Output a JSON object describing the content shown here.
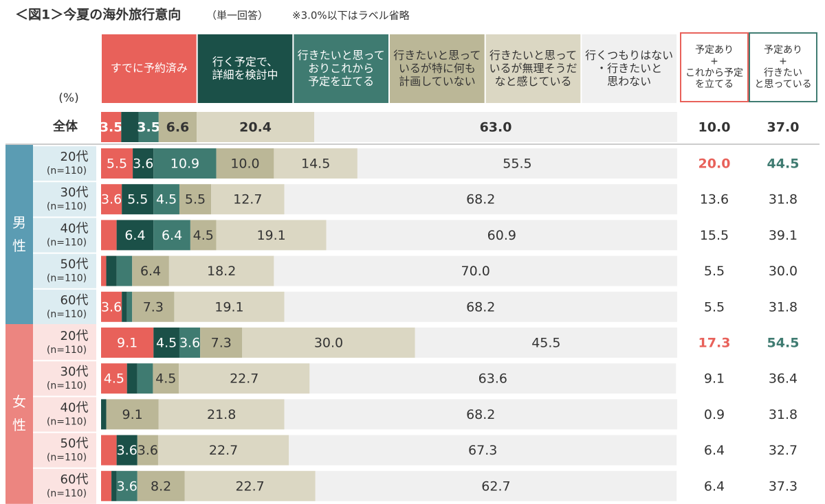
{
  "chart_data": {
    "type": "stacked-bar",
    "orientation": "horizontal",
    "title": "＜図1＞今夏の海外旅行意向",
    "subtitle": "（単一回答）",
    "note": "※3.0%以下はラベル省略",
    "unit_label": "(%)",
    "xlim": [
      0,
      100
    ],
    "categories": [
      "全体",
      "20代",
      "30代",
      "40代",
      "50代",
      "60代",
      "20代",
      "30代",
      "40代",
      "50代",
      "60代"
    ],
    "category_notes": [
      null,
      "(n=110)",
      "(n=110)",
      "(n=110)",
      "(n=110)",
      "(n=110)",
      "(n=110)",
      "(n=110)",
      "(n=110)",
      "(n=110)",
      "(n=110)"
    ],
    "groups": [
      {
        "label": "男性",
        "count": 5,
        "color": "#5b9cb3",
        "background": "#dcecf1"
      },
      {
        "label": "女性",
        "count": 5,
        "color": "#ec8580",
        "background": "#fbe3e1"
      }
    ],
    "series": [
      {
        "name": "すでに予約済み",
        "color": "#e8615a",
        "label_color": "#ffffff",
        "values": [
          3.5,
          5.5,
          3.6,
          2.7,
          0.9,
          3.6,
          9.1,
          4.5,
          0,
          2.7,
          1.8
        ],
        "value_labels": [
          "3.5",
          "5.5",
          "3.6",
          null,
          null,
          "3.6",
          "9.1",
          "4.5",
          null,
          null,
          null
        ]
      },
      {
        "name": "行く予定で、\n詳細を検討中",
        "color": "#1b5048",
        "label_color": "#ffffff",
        "values": [
          3.0,
          3.6,
          5.5,
          6.4,
          1.8,
          0.9,
          4.5,
          1.8,
          0.9,
          3.6,
          0.9
        ],
        "value_labels": [
          null,
          "3.6",
          "5.5",
          "6.4",
          null,
          null,
          "4.5",
          null,
          null,
          "3.6",
          null
        ]
      },
      {
        "name": "行きたいと思って\nおりこれから\n予定を立てる",
        "color": "#3f7b71",
        "label_color": "#ffffff",
        "values": [
          3.5,
          10.9,
          4.5,
          6.4,
          2.7,
          0.9,
          3.6,
          2.7,
          0,
          0,
          3.6
        ],
        "value_labels": [
          "3.5",
          "10.9",
          "4.5",
          "6.4",
          null,
          null,
          "3.6",
          null,
          null,
          null,
          "3.6"
        ]
      },
      {
        "name": "行きたいと思って\nいるが特に何も\n計画していない",
        "color": "#bbb797",
        "label_color": "#333333",
        "values": [
          6.6,
          10.0,
          5.5,
          4.5,
          6.4,
          7.3,
          7.3,
          4.5,
          9.1,
          3.6,
          8.2
        ],
        "value_labels": [
          "6.6",
          "10.0",
          "5.5",
          "4.5",
          "6.4",
          "7.3",
          "7.3",
          "4.5",
          "9.1",
          "3.6",
          "8.2"
        ]
      },
      {
        "name": "行きたいと思って\nいるが無理そうだ\nなと感じている",
        "color": "#dbd7c3",
        "label_color": "#333333",
        "values": [
          20.4,
          14.5,
          12.7,
          19.1,
          18.2,
          19.1,
          30.0,
          22.7,
          21.8,
          22.7,
          22.7
        ],
        "value_labels": [
          "20.4",
          "14.5",
          "12.7",
          "19.1",
          "18.2",
          "19.1",
          "30.0",
          "22.7",
          "21.8",
          "22.7",
          "22.7"
        ]
      },
      {
        "name": "行くつもりはない\n・行きたいと\n思わない",
        "color": "#f0f0f0",
        "label_color": "#333333",
        "values": [
          63.0,
          55.5,
          68.2,
          60.9,
          70.0,
          68.2,
          45.5,
          63.6,
          68.2,
          67.3,
          62.7
        ],
        "value_labels": [
          "63.0",
          "55.5",
          "68.2",
          "60.9",
          "70.0",
          "68.2",
          "45.5",
          "63.6",
          "68.2",
          "67.3",
          "62.7"
        ]
      }
    ],
    "summary_columns": [
      {
        "name": "予定あり\n+\nこれから予定\nを立てる",
        "color": "#e8615a",
        "values": [
          10.0,
          20.0,
          13.6,
          15.5,
          5.5,
          5.5,
          17.3,
          9.1,
          0.9,
          6.4,
          6.4
        ],
        "value_labels": [
          "10.0",
          "20.0",
          "13.6",
          "15.5",
          "5.5",
          "5.5",
          "17.3",
          "9.1",
          "0.9",
          "6.4",
          "6.4"
        ]
      },
      {
        "name": "予定あり\n+\n行きたい\nと思っている",
        "color": "#3f7b71",
        "values": [
          37.0,
          44.5,
          31.8,
          39.1,
          30.0,
          31.8,
          54.5,
          36.4,
          31.8,
          32.7,
          37.3
        ],
        "value_labels": [
          "37.0",
          "44.5",
          "31.8",
          "39.1",
          "30.0",
          "31.8",
          "54.5",
          "36.4",
          "31.8",
          "32.7",
          "37.3"
        ]
      }
    ],
    "highlight_rows": [
      1,
      6
    ]
  }
}
